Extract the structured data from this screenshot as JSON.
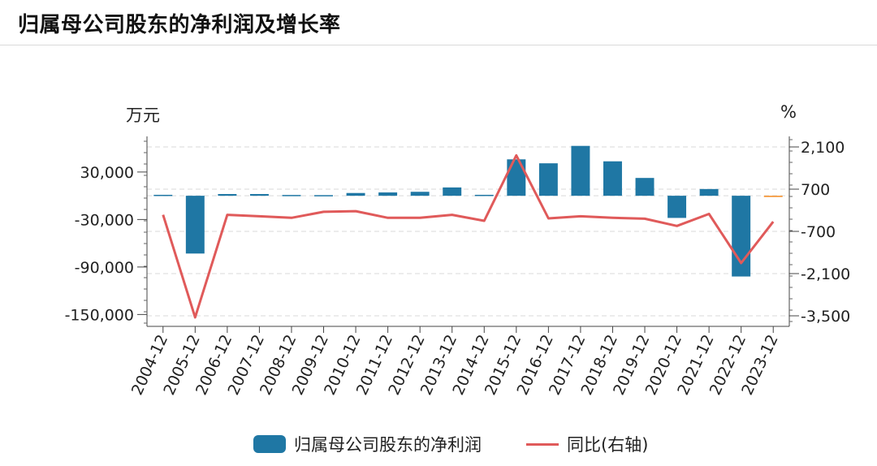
{
  "header": {
    "title": "归属母公司股东的净利润及增长率"
  },
  "units": {
    "left": "万元",
    "right": "%"
  },
  "legend": {
    "bar_label": "归属母公司股东的净利润",
    "line_label": "同比(右轴)"
  },
  "colors": {
    "bar": "#1f77a4",
    "bar_highlight": "#f58a1f",
    "line": "#e05a5a",
    "grid": "#d9d9d9"
  },
  "chart_data": {
    "type": "bar+line",
    "categories": [
      "2004-12",
      "2005-12",
      "2006-12",
      "2007-12",
      "2008-12",
      "2009-12",
      "2010-12",
      "2011-12",
      "2012-12",
      "2013-12",
      "2014-12",
      "2015-12",
      "2016-12",
      "2017-12",
      "2018-12",
      "2019-12",
      "2020-12",
      "2021-12",
      "2022-12",
      "2023-12"
    ],
    "series": [
      {
        "name": "归属母公司股东的净利润",
        "type": "bar",
        "axis": "left",
        "values": [
          1200,
          -73000,
          2200,
          2200,
          1000,
          800,
          3500,
          4200,
          5000,
          10500,
          1200,
          46000,
          41000,
          63000,
          43500,
          22500,
          -28000,
          8500,
          -102000,
          -1000
        ],
        "highlight_index": 19
      },
      {
        "name": "同比(右轴)",
        "type": "line",
        "axis": "right",
        "values": [
          -150,
          -3550,
          -150,
          -200,
          -250,
          -50,
          -30,
          -250,
          -250,
          -150,
          -350,
          1820,
          -270,
          -200,
          -250,
          -280,
          -520,
          -120,
          -1750,
          -380
        ]
      }
    ],
    "left_axis": {
      "ticks": [
        30000,
        -30000,
        -90000,
        -150000
      ],
      "tick_labels": [
        "30,000",
        "-30,000",
        "-90,000",
        "-150,000"
      ],
      "range": [
        -165000,
        75000
      ]
    },
    "right_axis": {
      "ticks": [
        2100,
        700,
        -700,
        -2100,
        -3500
      ],
      "tick_labels": [
        "2,100",
        "700",
        "-700",
        "-2,100",
        "-3,500"
      ],
      "range": [
        -3850,
        2450
      ]
    },
    "grid": true,
    "legend_position": "bottom"
  }
}
